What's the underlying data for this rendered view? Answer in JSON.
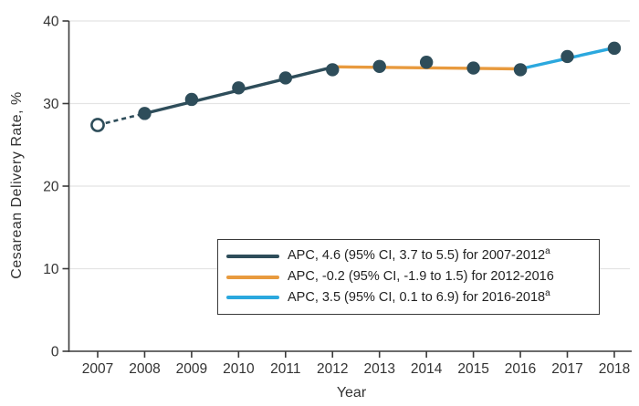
{
  "chart_data": {
    "type": "line",
    "title": "",
    "xlabel": "Year",
    "ylabel": "Cesarean Delivery Rate, %",
    "x": [
      2007,
      2008,
      2009,
      2010,
      2011,
      2012,
      2013,
      2014,
      2015,
      2016,
      2017,
      2018
    ],
    "y_ticks": [
      0,
      10,
      20,
      30,
      40
    ],
    "ylim": [
      0,
      40
    ],
    "grid": "horizontal-light-gray",
    "legend_position": "inside-lower-center",
    "points": [
      {
        "year": 2007,
        "value": 27.4,
        "open": true
      },
      {
        "year": 2008,
        "value": 28.8,
        "open": false
      },
      {
        "year": 2009,
        "value": 30.5,
        "open": false
      },
      {
        "year": 2010,
        "value": 31.9,
        "open": false
      },
      {
        "year": 2011,
        "value": 33.1,
        "open": false
      },
      {
        "year": 2012,
        "value": 34.1,
        "open": false
      },
      {
        "year": 2013,
        "value": 34.5,
        "open": false
      },
      {
        "year": 2014,
        "value": 35.0,
        "open": false
      },
      {
        "year": 2015,
        "value": 34.3,
        "open": false
      },
      {
        "year": 2016,
        "value": 34.1,
        "open": false
      },
      {
        "year": 2017,
        "value": 35.7,
        "open": false
      },
      {
        "year": 2018,
        "value": 36.7,
        "open": false
      }
    ],
    "trend_segments": [
      {
        "name": "pre-period-dashed",
        "style": "dashed",
        "color_key": "dark_teal",
        "from": {
          "year": 2007,
          "value": 27.4
        },
        "to": {
          "year": 2008,
          "value": 28.8
        }
      },
      {
        "name": "apc-2007-2012",
        "style": "solid",
        "color_key": "dark_teal",
        "from": {
          "year": 2008,
          "value": 28.8
        },
        "to": {
          "year": 2012,
          "value": 34.4
        }
      },
      {
        "name": "apc-2012-2016",
        "style": "solid",
        "color_key": "orange",
        "from": {
          "year": 2012,
          "value": 34.45
        },
        "to": {
          "year": 2016,
          "value": 34.2
        }
      },
      {
        "name": "apc-2016-2018",
        "style": "solid",
        "color_key": "blue",
        "from": {
          "year": 2016,
          "value": 34.2
        },
        "to": {
          "year": 2018,
          "value": 36.75
        }
      }
    ],
    "legend": {
      "entries": [
        {
          "color_key": "dark_teal",
          "text": "APC, 4.6 (95% CI, 3.7 to 5.5) for 2007-2012",
          "sup": "a"
        },
        {
          "color_key": "orange",
          "text": "APC, -0.2 (95% CI, -1.9 to 1.5) for 2012-2016",
          "sup": ""
        },
        {
          "color_key": "blue",
          "text": "APC, 3.5 (95% CI, 0.1 to 6.9) for 2016-2018",
          "sup": "a"
        }
      ]
    },
    "colors": {
      "dark_teal": "#2E4D5A",
      "orange": "#E89A3E",
      "blue": "#2BA8DE",
      "grid": "#E4E4E4",
      "axis": "#3A3A3A",
      "text": "#333333"
    }
  }
}
